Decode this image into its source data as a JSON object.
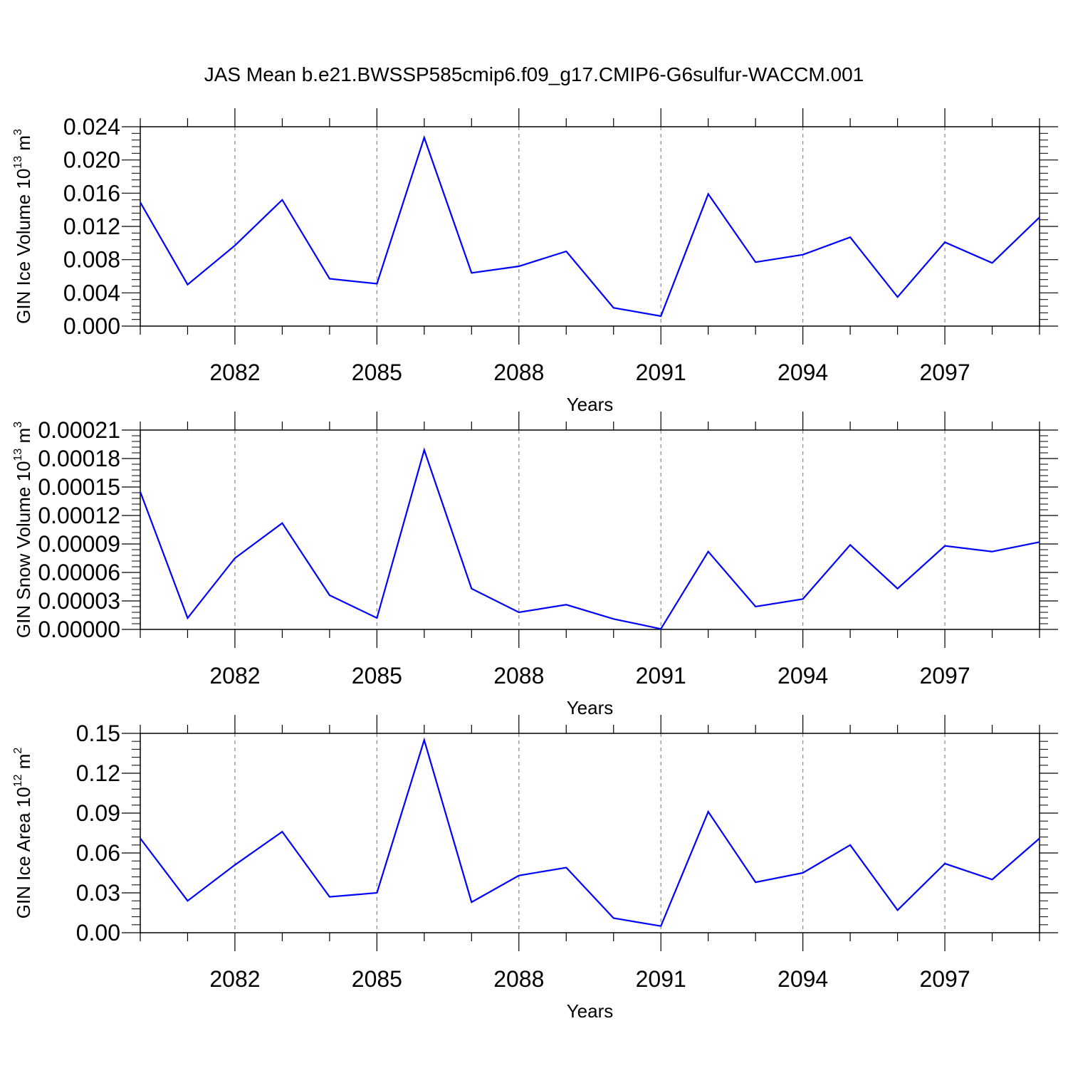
{
  "title": "JAS Mean b.e21.BWSSP585cmip6.f09_g17.CMIP6-G6sulfur-WACCM.001",
  "chart_data": [
    {
      "type": "line",
      "xlabel": "Years",
      "ylabel": {
        "text": "GIN Ice Volume 10",
        "exponent": "13",
        "unit": " m",
        "unit_exponent": "3"
      },
      "x": [
        2080,
        2081,
        2082,
        2083,
        2084,
        2085,
        2086,
        2087,
        2088,
        2089,
        2090,
        2091,
        2092,
        2093,
        2094,
        2095,
        2096,
        2097,
        2098,
        2099
      ],
      "series": [
        {
          "values": [
            0.0149,
            0.005,
            0.0097,
            0.0152,
            0.0057,
            0.0051,
            0.0227,
            0.0064,
            0.0072,
            0.009,
            0.0022,
            0.0012,
            0.0159,
            0.0077,
            0.0086,
            0.0107,
            0.0035,
            0.0101,
            0.0076,
            0.0131
          ],
          "color": "#0000ff"
        }
      ],
      "xlim": [
        2080,
        2099
      ],
      "ylim": [
        0,
        0.024
      ],
      "xticks": [
        2082,
        2085,
        2088,
        2091,
        2094,
        2097
      ],
      "xtick_labels": [
        "2082",
        "2085",
        "2088",
        "2091",
        "2094",
        "2097"
      ],
      "yticks": [
        0,
        0.004,
        0.008,
        0.012,
        0.016,
        0.02,
        0.024
      ],
      "ytick_labels": [
        "0.000",
        "0.004",
        "0.008",
        "0.012",
        "0.016",
        "0.020",
        "0.024"
      ],
      "grid": "vertical-dashed"
    },
    {
      "type": "line",
      "xlabel": "Years",
      "ylabel": {
        "text": "GIN Snow Volume 10",
        "exponent": "13",
        "unit": " m",
        "unit_exponent": "3"
      },
      "x": [
        2080,
        2081,
        2082,
        2083,
        2084,
        2085,
        2086,
        2087,
        2088,
        2089,
        2090,
        2091,
        2092,
        2093,
        2094,
        2095,
        2096,
        2097,
        2098,
        2099
      ],
      "series": [
        {
          "values": [
            0.000145,
            1.2e-05,
            7.5e-05,
            0.000112,
            3.6e-05,
            1.2e-05,
            0.000189,
            4.3e-05,
            1.8e-05,
            2.6e-05,
            1.1e-05,
            5e-07,
            8.2e-05,
            2.4e-05,
            3.2e-05,
            8.9e-05,
            4.3e-05,
            8.8e-05,
            8.2e-05,
            9.2e-05
          ],
          "color": "#0000ff"
        }
      ],
      "xlim": [
        2080,
        2099
      ],
      "ylim": [
        0,
        0.00021
      ],
      "xticks": [
        2082,
        2085,
        2088,
        2091,
        2094,
        2097
      ],
      "xtick_labels": [
        "2082",
        "2085",
        "2088",
        "2091",
        "2094",
        "2097"
      ],
      "yticks": [
        0,
        3e-05,
        6e-05,
        9e-05,
        0.00012,
        0.00015,
        0.00018,
        0.00021
      ],
      "ytick_labels": [
        "0.00000",
        "0.00003",
        "0.00006",
        "0.00009",
        "0.00012",
        "0.00015",
        "0.00018",
        "0.00021"
      ],
      "grid": "vertical-dashed"
    },
    {
      "type": "line",
      "xlabel": "Years",
      "ylabel": {
        "text": "GIN Ice Area 10",
        "exponent": "12",
        "unit": " m",
        "unit_exponent": "2"
      },
      "x": [
        2080,
        2081,
        2082,
        2083,
        2084,
        2085,
        2086,
        2087,
        2088,
        2089,
        2090,
        2091,
        2092,
        2093,
        2094,
        2095,
        2096,
        2097,
        2098,
        2099
      ],
      "series": [
        {
          "values": [
            0.071,
            0.024,
            0.051,
            0.076,
            0.027,
            0.03,
            0.145,
            0.023,
            0.043,
            0.049,
            0.011,
            0.005,
            0.091,
            0.038,
            0.045,
            0.066,
            0.017,
            0.052,
            0.04,
            0.071
          ],
          "color": "#0000ff"
        }
      ],
      "xlim": [
        2080,
        2099
      ],
      "ylim": [
        0,
        0.15
      ],
      "xticks": [
        2082,
        2085,
        2088,
        2091,
        2094,
        2097
      ],
      "xtick_labels": [
        "2082",
        "2085",
        "2088",
        "2091",
        "2094",
        "2097"
      ],
      "yticks": [
        0,
        0.03,
        0.06,
        0.09,
        0.12,
        0.15
      ],
      "ytick_labels": [
        "0.00",
        "0.03",
        "0.06",
        "0.09",
        "0.12",
        "0.15"
      ],
      "grid": "vertical-dashed"
    }
  ]
}
